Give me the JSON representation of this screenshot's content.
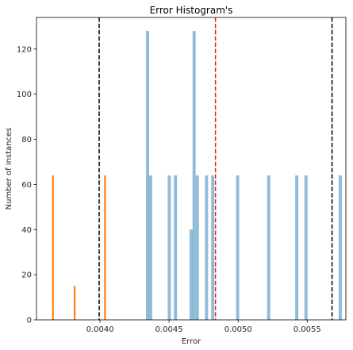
{
  "chart_data": {
    "type": "bar",
    "title": "Error Histogram's",
    "xlabel": "Error",
    "ylabel": "Number of instances",
    "xlim": [
      0.00354,
      0.00578
    ],
    "ylim": [
      0,
      134
    ],
    "xticks": [
      {
        "value": 0.004,
        "label": "0.0040"
      },
      {
        "value": 0.0045,
        "label": "0.0045"
      },
      {
        "value": 0.005,
        "label": "0.0050"
      },
      {
        "value": 0.0055,
        "label": "0.0055"
      }
    ],
    "yticks": [
      0,
      20,
      40,
      60,
      80,
      100,
      120
    ],
    "grid": false,
    "legend": "none",
    "bin_width": 2.25e-05,
    "series": [
      {
        "color": "#1f77b4",
        "opacity": 0.5,
        "bins": [
          {
            "x": 0.004333,
            "y": 128
          },
          {
            "x": 0.004355,
            "y": 64
          },
          {
            "x": 0.00449,
            "y": 64
          },
          {
            "x": 0.004535,
            "y": 64
          },
          {
            "x": 0.004648,
            "y": 40
          },
          {
            "x": 0.00467,
            "y": 128
          },
          {
            "x": 0.004693,
            "y": 64
          },
          {
            "x": 0.00476,
            "y": 64
          },
          {
            "x": 0.004805,
            "y": 64
          },
          {
            "x": 0.004985,
            "y": 64
          },
          {
            "x": 0.00521,
            "y": 64
          },
          {
            "x": 0.005413,
            "y": 64
          },
          {
            "x": 0.00548,
            "y": 64
          },
          {
            "x": 0.005728,
            "y": 64
          }
        ]
      },
      {
        "color": "#ff7f0e",
        "opacity": 1,
        "bar_width": 1.25e-05,
        "bins": [
          {
            "x": 0.003653,
            "y": 64
          },
          {
            "x": 0.00381,
            "y": 15
          },
          {
            "x": 0.00403,
            "y": 64
          }
        ]
      }
    ],
    "vlines": [
      {
        "x": 0.003994,
        "color": "#000000",
        "style": "dashed"
      },
      {
        "x": 0.004836,
        "color": "#d62728",
        "style": "dashed"
      },
      {
        "x": 0.00568,
        "color": "#000000",
        "style": "dashed"
      }
    ]
  }
}
